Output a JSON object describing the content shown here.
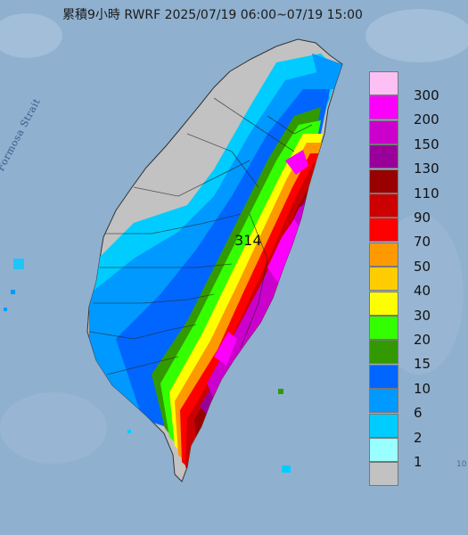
{
  "title": "累積9小時 RWRF 2025/07/19 06:00~07/19 15:00",
  "strait_label": "Formosa Strait",
  "max_value_label": "314",
  "corner_mark": "10",
  "legend": {
    "levels": [
      {
        "label": "300",
        "color": "#fdc0f5"
      },
      {
        "label": "200",
        "color": "#fb00fb"
      },
      {
        "label": "150",
        "color": "#cc00cc"
      },
      {
        "label": "130",
        "color": "#990099"
      },
      {
        "label": "110",
        "color": "#990000"
      },
      {
        "label": "90",
        "color": "#cc0000"
      },
      {
        "label": "70",
        "color": "#fe0000"
      },
      {
        "label": "50",
        "color": "#fe9900"
      },
      {
        "label": "40",
        "color": "#fecc00"
      },
      {
        "label": "30",
        "color": "#fefe00"
      },
      {
        "label": "20",
        "color": "#33ff00"
      },
      {
        "label": "15",
        "color": "#339900"
      },
      {
        "label": "10",
        "color": "#0066ff"
      },
      {
        "label": "6",
        "color": "#0099ff"
      },
      {
        "label": "2",
        "color": "#00ccff"
      },
      {
        "label": "1",
        "color": "#99ffff"
      },
      {
        "label": "",
        "color": "#c2c2c2"
      }
    ]
  },
  "colors": {
    "sea": "#8fb0cf",
    "dry": "#b8b8b8"
  }
}
